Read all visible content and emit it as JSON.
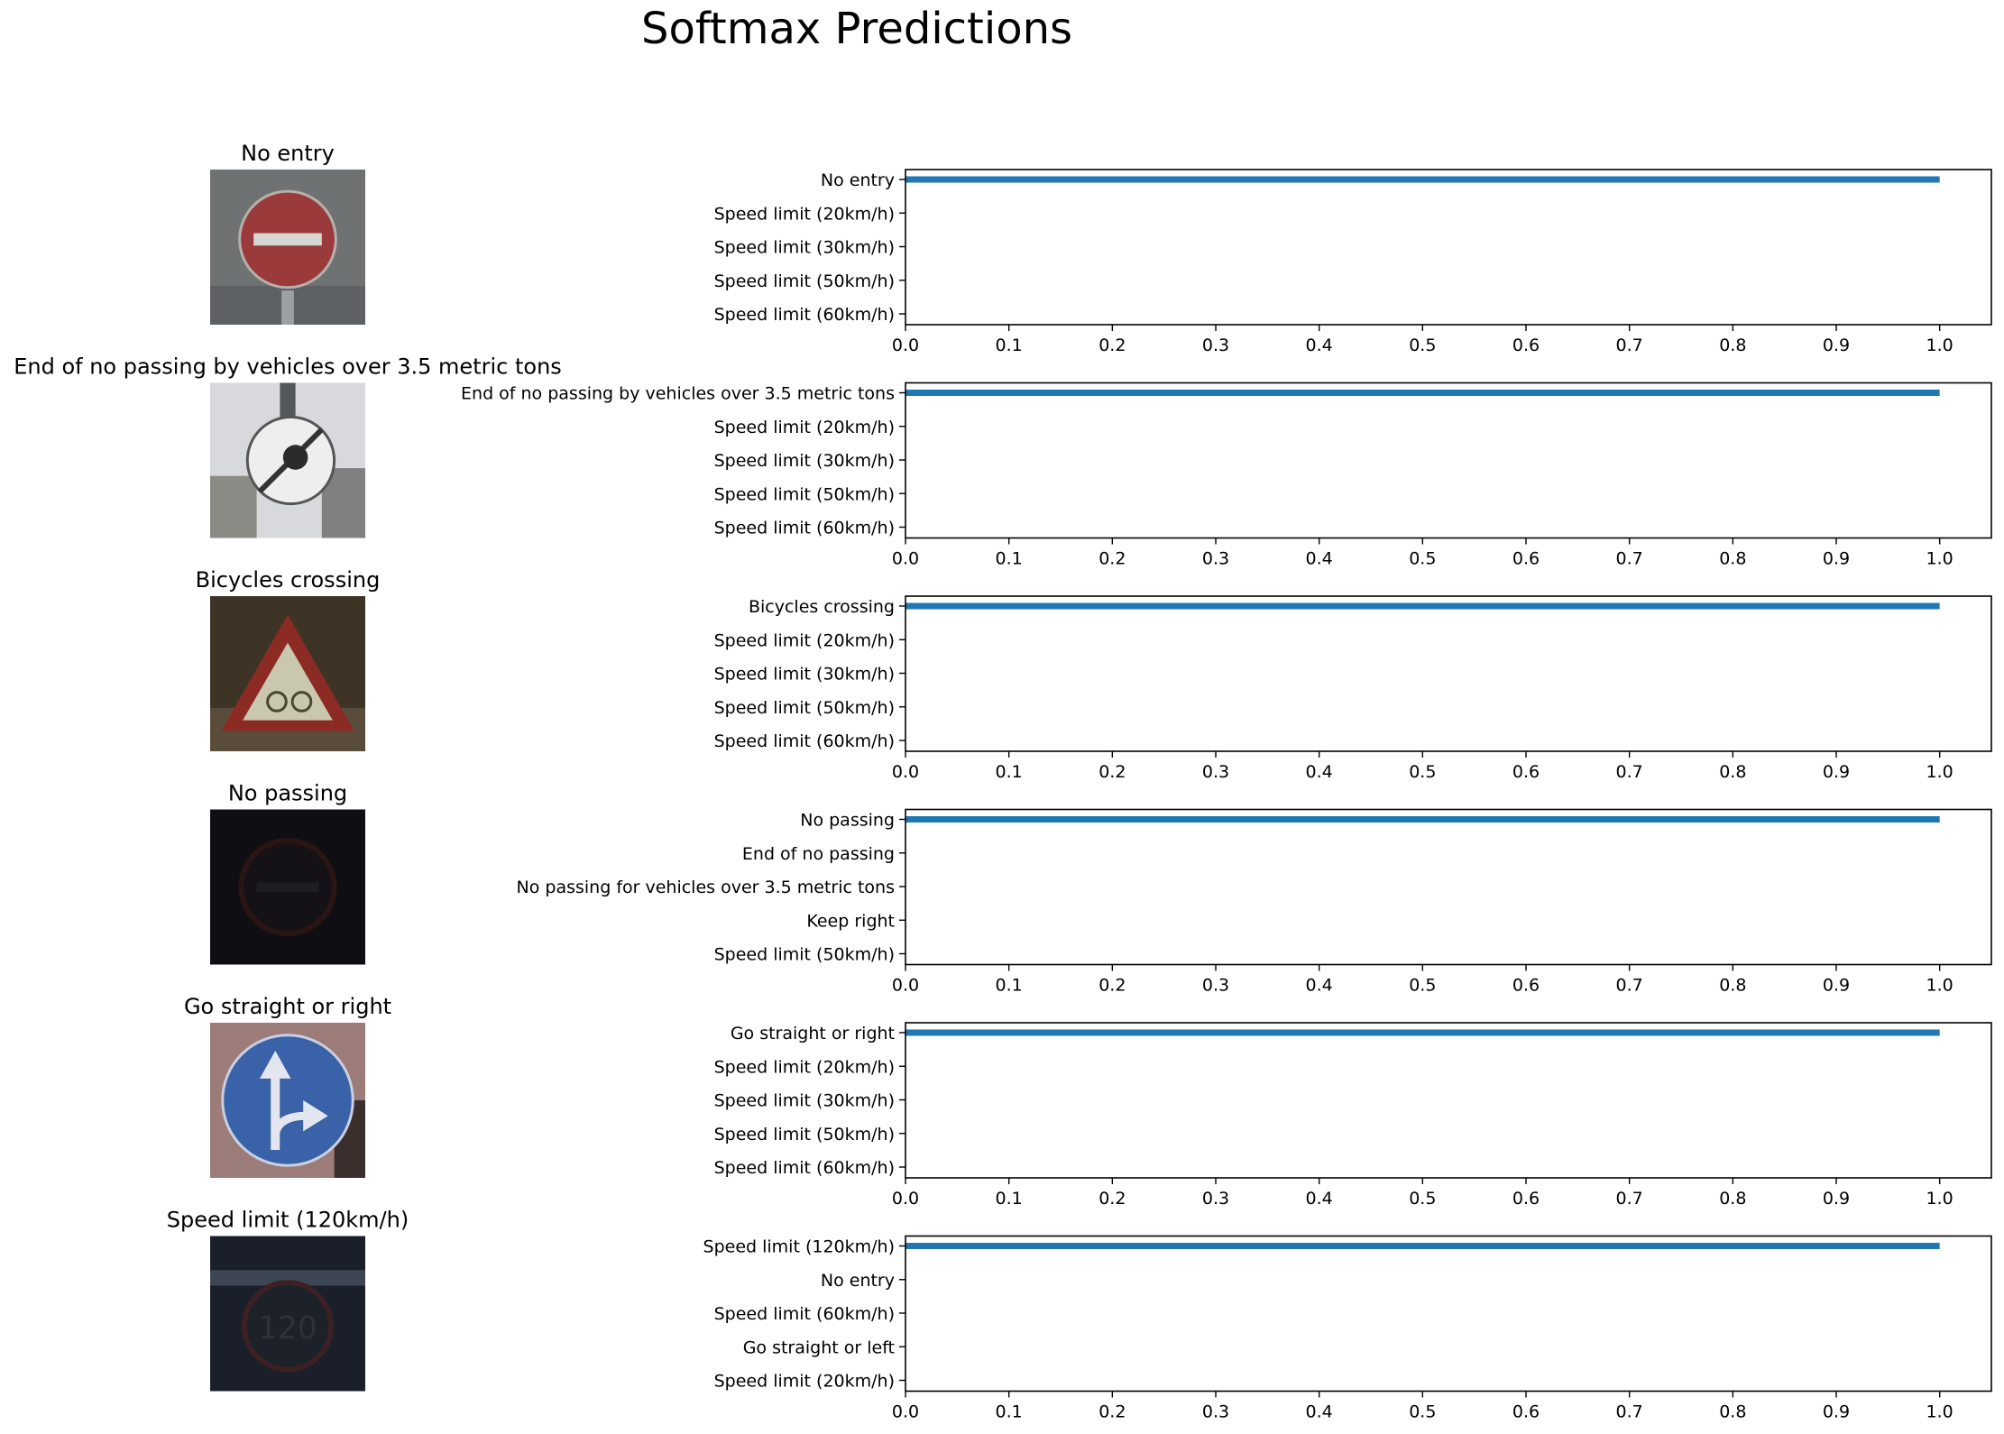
{
  "figure": {
    "title": "Softmax Predictions",
    "bar_color": "#1f77b4"
  },
  "chart_data": [
    {
      "type": "bar",
      "orientation": "horizontal",
      "image_title": "No entry",
      "image_icon": "no-entry-sign-icon",
      "categories": [
        "No entry",
        "Speed limit (20km/h)",
        "Speed limit (30km/h)",
        "Speed limit (50km/h)",
        "Speed limit (60km/h)"
      ],
      "values": [
        1.0,
        0.0,
        0.0,
        0.0,
        0.0
      ],
      "xlim": [
        0,
        1.05
      ],
      "xticks": [
        "0.0",
        "0.1",
        "0.2",
        "0.3",
        "0.4",
        "0.5",
        "0.6",
        "0.7",
        "0.8",
        "0.9",
        "1.0"
      ],
      "grid": false
    },
    {
      "type": "bar",
      "orientation": "horizontal",
      "image_title": "End of no passing by vehicles over 3.5 metric tons",
      "image_icon": "end-of-no-passing-sign-icon",
      "categories": [
        "End of no passing by vehicles over 3.5 metric tons",
        "Speed limit (20km/h)",
        "Speed limit (30km/h)",
        "Speed limit (50km/h)",
        "Speed limit (60km/h)"
      ],
      "values": [
        1.0,
        0.0,
        0.0,
        0.0,
        0.0
      ],
      "xlim": [
        0,
        1.05
      ],
      "xticks": [
        "0.0",
        "0.1",
        "0.2",
        "0.3",
        "0.4",
        "0.5",
        "0.6",
        "0.7",
        "0.8",
        "0.9",
        "1.0"
      ],
      "grid": false
    },
    {
      "type": "bar",
      "orientation": "horizontal",
      "image_title": "Bicycles crossing",
      "image_icon": "bicycles-crossing-sign-icon",
      "categories": [
        "Bicycles crossing",
        "Speed limit (20km/h)",
        "Speed limit (30km/h)",
        "Speed limit (50km/h)",
        "Speed limit (60km/h)"
      ],
      "values": [
        1.0,
        0.0,
        0.0,
        0.0,
        0.0
      ],
      "xlim": [
        0,
        1.05
      ],
      "xticks": [
        "0.0",
        "0.1",
        "0.2",
        "0.3",
        "0.4",
        "0.5",
        "0.6",
        "0.7",
        "0.8",
        "0.9",
        "1.0"
      ],
      "grid": false
    },
    {
      "type": "bar",
      "orientation": "horizontal",
      "image_title": "No passing",
      "image_icon": "no-passing-sign-icon",
      "categories": [
        "No passing",
        "End of no passing",
        "No passing for vehicles over 3.5 metric tons",
        "Keep right",
        "Speed limit (50km/h)"
      ],
      "values": [
        1.0,
        0.0,
        0.0,
        0.0,
        0.0
      ],
      "xlim": [
        0,
        1.05
      ],
      "xticks": [
        "0.0",
        "0.1",
        "0.2",
        "0.3",
        "0.4",
        "0.5",
        "0.6",
        "0.7",
        "0.8",
        "0.9",
        "1.0"
      ],
      "grid": false
    },
    {
      "type": "bar",
      "orientation": "horizontal",
      "image_title": "Go straight or right",
      "image_icon": "go-straight-or-right-sign-icon",
      "categories": [
        "Go straight or right",
        "Speed limit (20km/h)",
        "Speed limit (30km/h)",
        "Speed limit (50km/h)",
        "Speed limit (60km/h)"
      ],
      "values": [
        1.0,
        0.0,
        0.0,
        0.0,
        0.0
      ],
      "xlim": [
        0,
        1.05
      ],
      "xticks": [
        "0.0",
        "0.1",
        "0.2",
        "0.3",
        "0.4",
        "0.5",
        "0.6",
        "0.7",
        "0.8",
        "0.9",
        "1.0"
      ],
      "grid": false
    },
    {
      "type": "bar",
      "orientation": "horizontal",
      "image_title": "Speed limit (120km/h)",
      "image_icon": "speed-limit-120-sign-icon",
      "image_sign_text": "120",
      "categories": [
        "Speed limit (120km/h)",
        "No entry",
        "Speed limit (60km/h)",
        "Go straight or left",
        "Speed limit (20km/h)"
      ],
      "values": [
        1.0,
        0.0,
        0.0,
        0.0,
        0.0
      ],
      "xlim": [
        0,
        1.05
      ],
      "xticks": [
        "0.0",
        "0.1",
        "0.2",
        "0.3",
        "0.4",
        "0.5",
        "0.6",
        "0.7",
        "0.8",
        "0.9",
        "1.0"
      ],
      "grid": false
    }
  ]
}
